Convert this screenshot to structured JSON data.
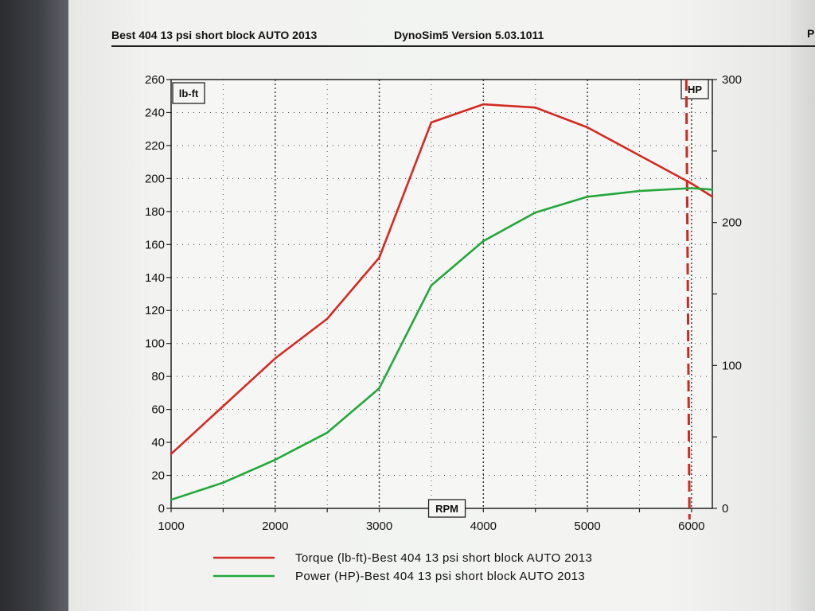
{
  "header": {
    "title": "Best 404 13 psi short block  AUTO 2013",
    "app_version": "DynoSim5  Version  5.03.1011",
    "corner": "P"
  },
  "chart_data": {
    "type": "line",
    "x_axis": {
      "label": "RPM",
      "range": [
        1000,
        6200
      ],
      "ticks": [
        1000,
        2000,
        3000,
        4000,
        5000,
        6000
      ],
      "minor_step": 500
    },
    "y_left": {
      "label": "lb-ft",
      "range": [
        0,
        260
      ],
      "ticks": [
        0,
        20,
        40,
        60,
        80,
        100,
        120,
        140,
        160,
        180,
        200,
        220,
        240,
        260
      ]
    },
    "y_right": {
      "label": "HP",
      "range": [
        0,
        300
      ],
      "ticks": [
        0,
        100,
        200,
        300
      ],
      "minor_step": 50
    },
    "grid": true,
    "marker_rpm": 5950,
    "colors": {
      "torque": "#d42a22",
      "power": "#22a83a",
      "marker": "#cc2a22"
    },
    "series": [
      {
        "name": "Torque (lb-ft)-Best 404 13 psi short block AUTO 2013",
        "axis": "left",
        "color": "#d42a22",
        "x": [
          1000,
          1500,
          2000,
          2500,
          3000,
          3500,
          4000,
          4500,
          5000,
          5500,
          6000,
          6200
        ],
        "y": [
          33,
          62,
          91,
          115,
          152,
          234,
          245,
          243,
          231,
          214,
          197,
          189
        ]
      },
      {
        "name": "Power (HP)-Best 404 13 psi short block AUTO 2013",
        "axis": "right",
        "color": "#22a83a",
        "x": [
          1000,
          1500,
          2000,
          2500,
          3000,
          3500,
          4000,
          4500,
          5000,
          5500,
          6000,
          6200
        ],
        "y": [
          6,
          18,
          34,
          53,
          84,
          156,
          187,
          207,
          218,
          222,
          224,
          223
        ]
      }
    ]
  }
}
